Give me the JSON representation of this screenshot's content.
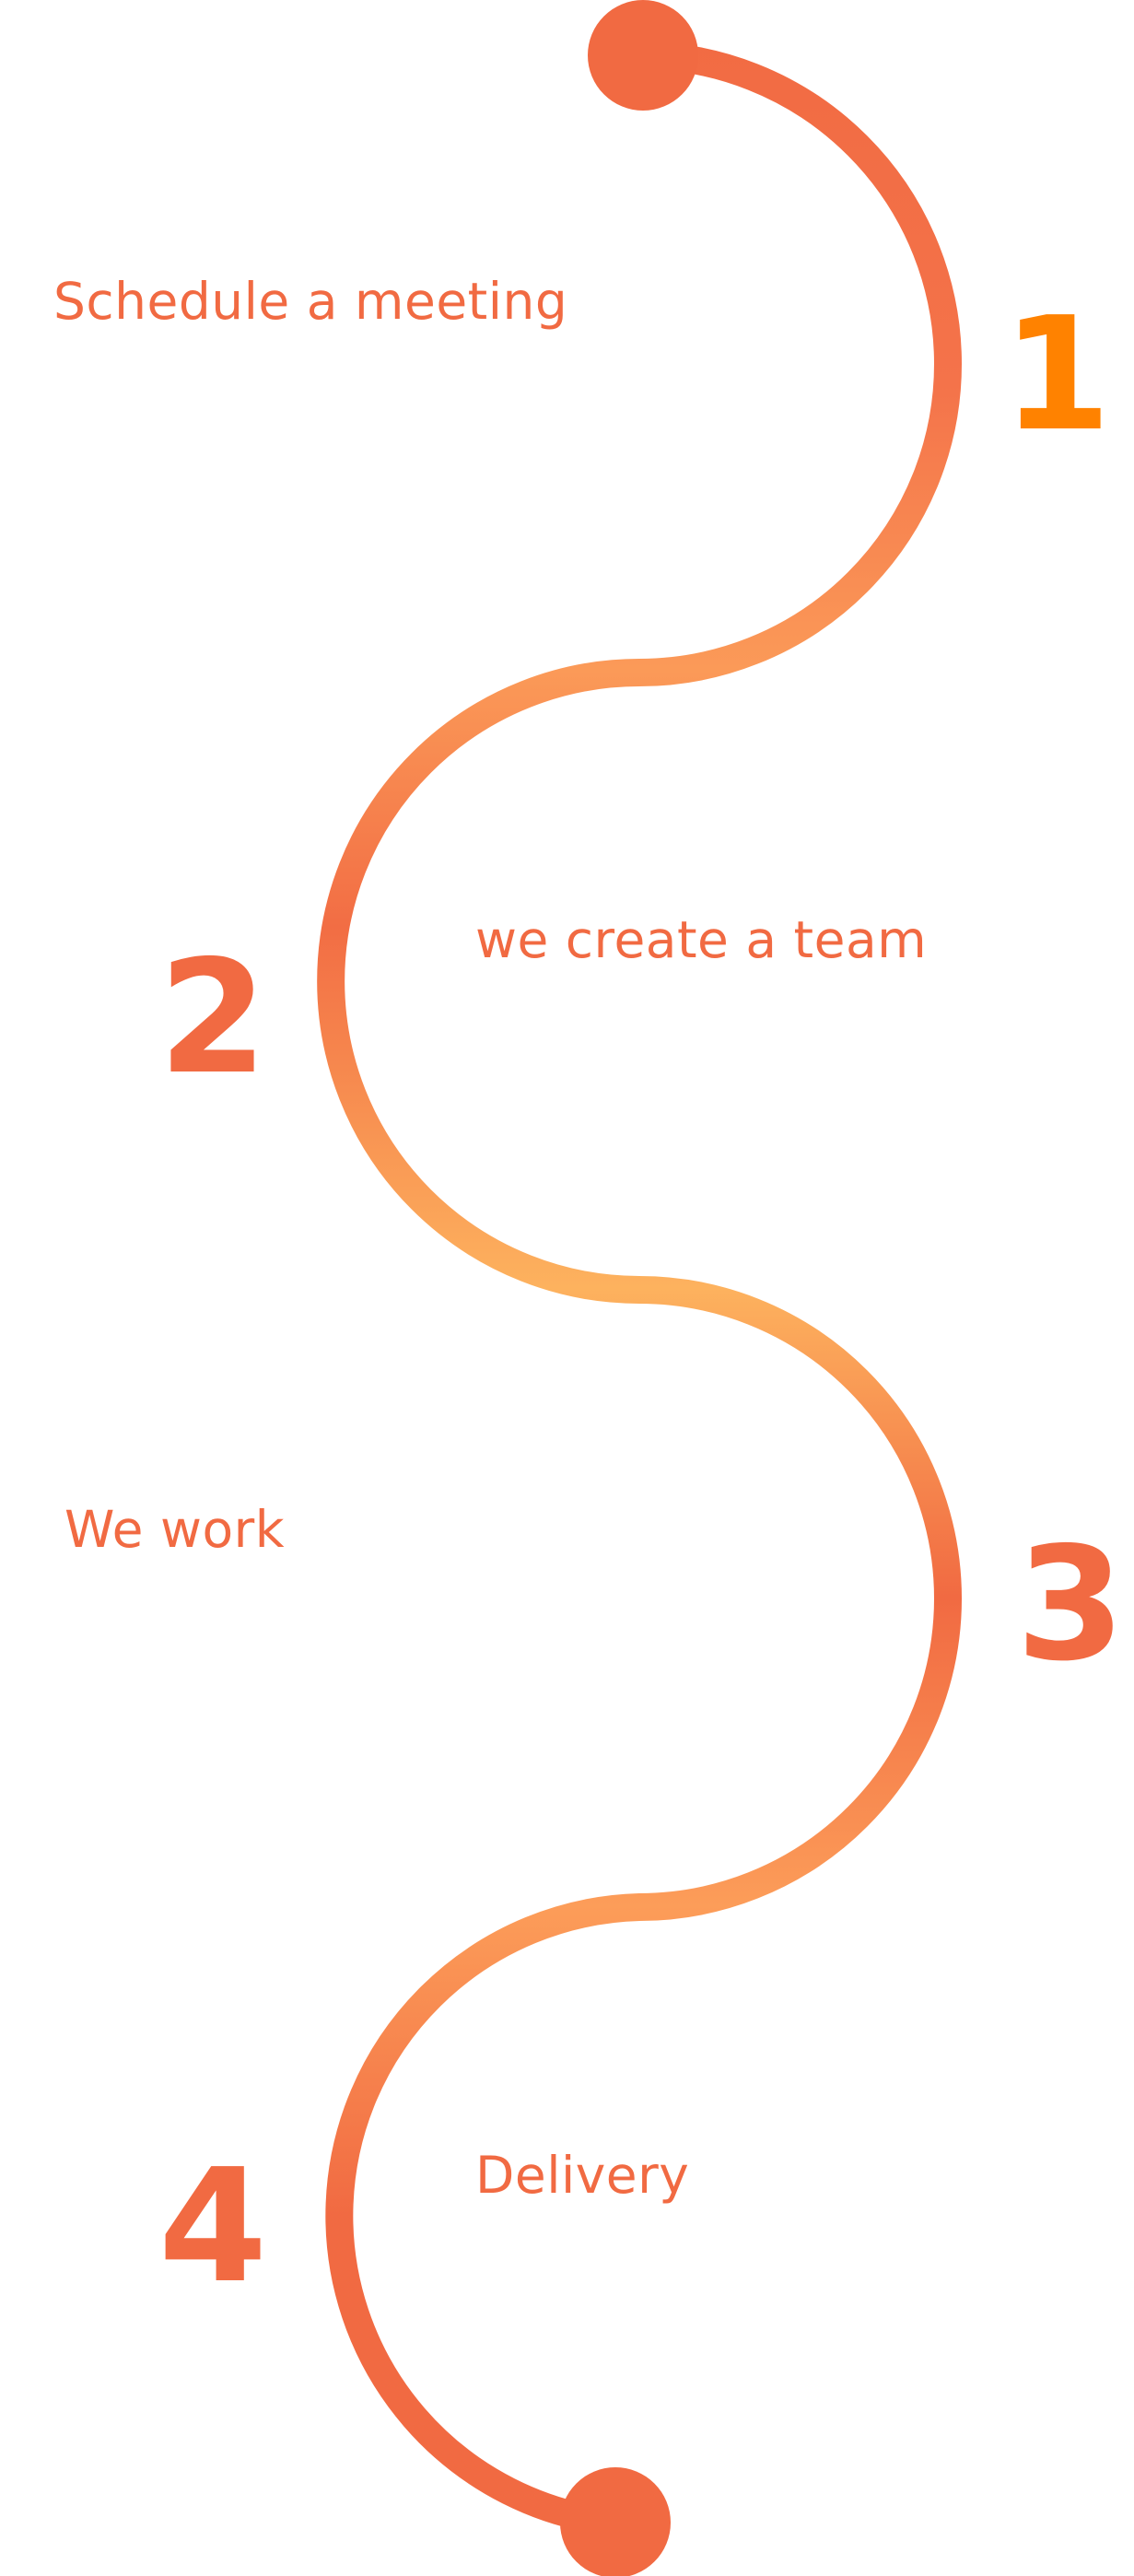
{
  "steps": [
    {
      "number": "1",
      "label": "Schedule a meeting"
    },
    {
      "number": "2",
      "label": "we create a team"
    },
    {
      "number": "3",
      "label": "We work"
    },
    {
      "number": "4",
      "label": "Delivery"
    }
  ],
  "colors": {
    "primary": "#F16A42",
    "number_one": "#FF8200",
    "gradient_light": "#FDB25E",
    "background": "#FFFFFF"
  }
}
